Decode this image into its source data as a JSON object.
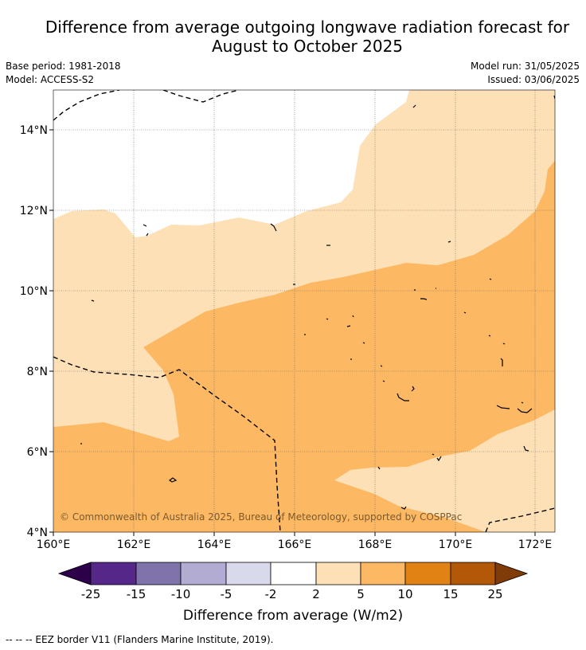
{
  "title_line1": "Difference from average outgoing longwave radiation forecast for",
  "title_line2": "August to October 2025",
  "base_period": "Base period: 1981-2018",
  "model": "Model: ACCESS-S2",
  "model_run": "Model run: 31/05/2025",
  "issued": "Issued: 03/06/2025",
  "lat_labels": [
    "14°N",
    "12°N",
    "10°N",
    "8°N",
    "6°N",
    "4°N"
  ],
  "lon_labels": [
    "160°E",
    "162°E",
    "164°E",
    "166°E",
    "168°E",
    "170°E",
    "172°E"
  ],
  "copyright": "© Commonwealth of Australia 2025, Bureau of Meteorology, supported by COSPPac",
  "colorbar": {
    "ticks": [
      "-25",
      "-15",
      "-10",
      "-5",
      "-2",
      "2",
      "5",
      "10",
      "15",
      "25"
    ],
    "colors": [
      "#2d004b",
      "#542788",
      "#8073ac",
      "#b2abd2",
      "#d8daeb",
      "#ffffff",
      "#fee0b6",
      "#fdb863",
      "#e08214",
      "#b35806",
      "#7f3b08"
    ],
    "label": "Difference from average (W/m2)"
  },
  "footnote": "--  --  -- EEZ border V11 (Flanders Marine Institute, 2019)."
}
